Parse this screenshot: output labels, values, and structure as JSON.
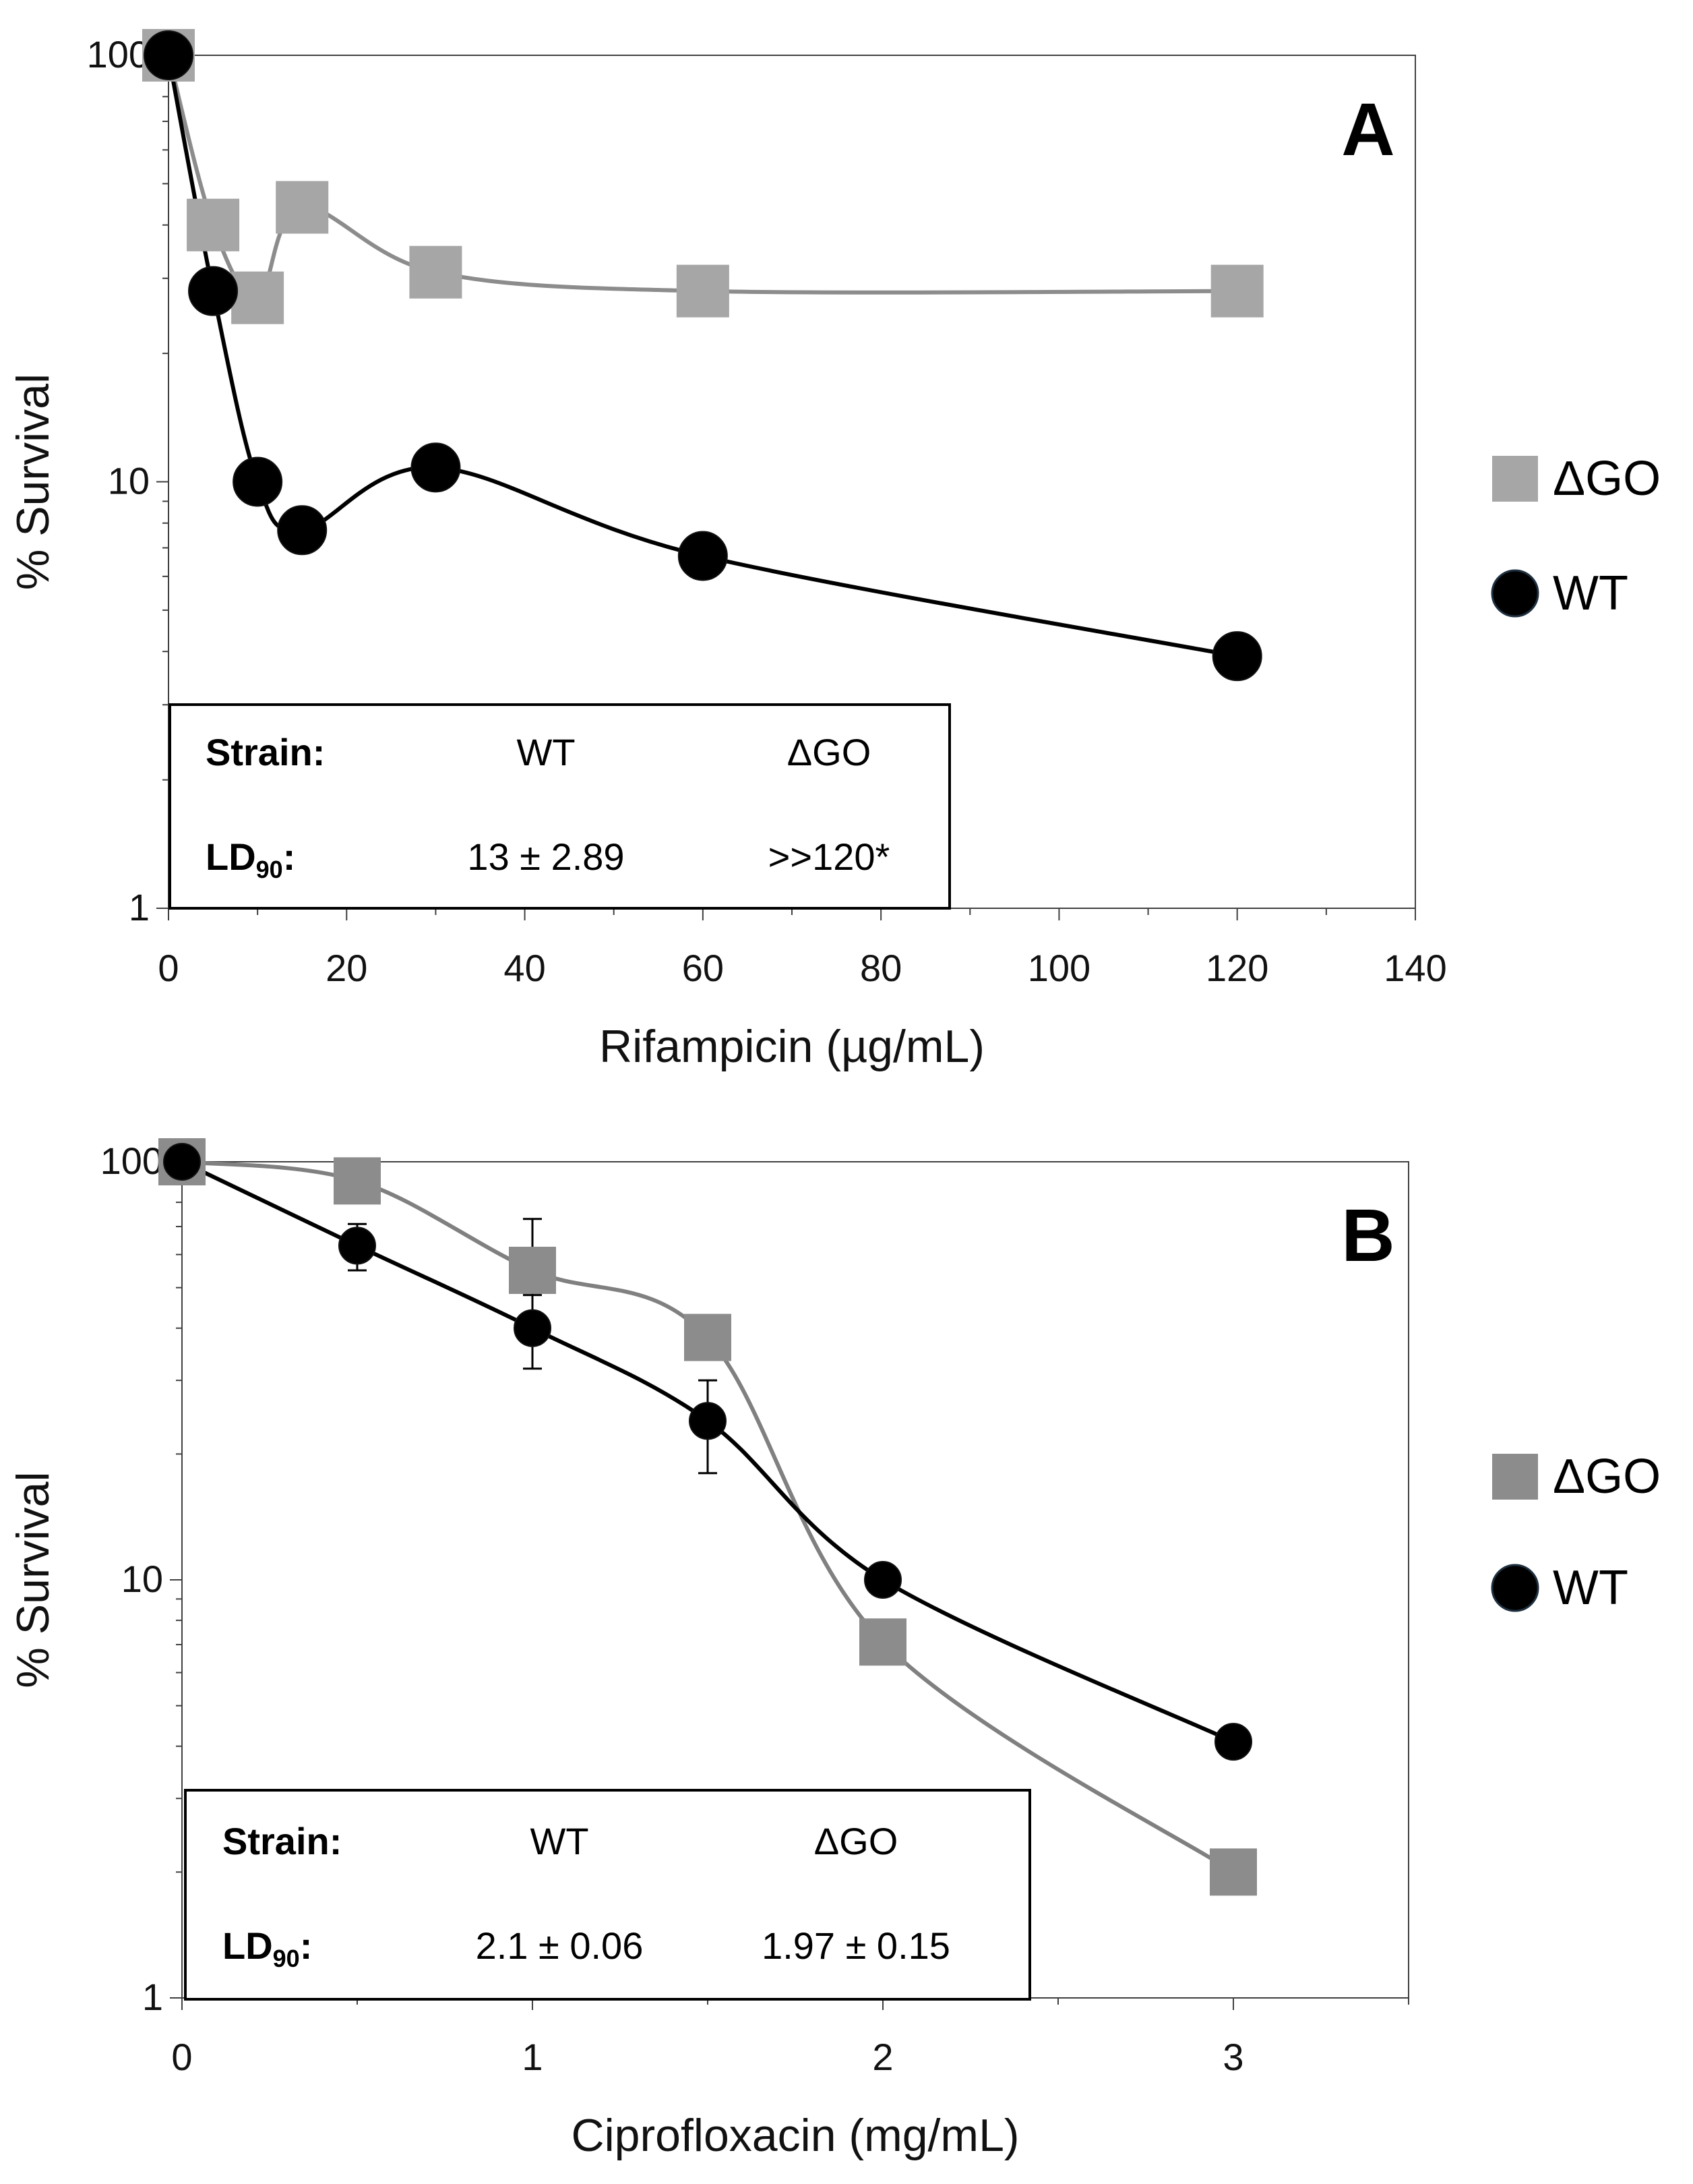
{
  "chart_data": [
    {
      "type": "line",
      "panel_label": "A",
      "xlabel": "Rifampicin (µg/mL)",
      "ylabel": "% Survival",
      "yscale": "log",
      "xlim": [
        0,
        140
      ],
      "ylim": [
        1,
        100
      ],
      "xticks": [
        0,
        20,
        40,
        60,
        80,
        100,
        120,
        140
      ],
      "yticks": [
        1,
        10,
        100
      ],
      "legend_position": "right-outside",
      "series": [
        {
          "name": "ΔGO",
          "color": "#a6a6a6",
          "line_color": "#8c8c8c",
          "marker": "square",
          "x": [
            0,
            5,
            10,
            15,
            30,
            60,
            120
          ],
          "y": [
            100,
            40,
            27,
            44,
            31,
            28,
            28
          ]
        },
        {
          "name": "WT",
          "color": "#000000",
          "line_color": "#000000",
          "marker": "circle",
          "x": [
            0,
            5,
            10,
            15,
            30,
            60,
            120
          ],
          "y": [
            100,
            28,
            10,
            7.7,
            10.8,
            6.7,
            3.9
          ]
        }
      ],
      "table": {
        "header": [
          "Strain:",
          "WT",
          "ΔGO"
        ],
        "row_label_main": "LD",
        "row_label_sub": "90",
        "row_label_suffix": ":",
        "row_values": [
          "13 ± 2.89",
          ">>120*"
        ]
      }
    },
    {
      "type": "line",
      "panel_label": "B",
      "xlabel": "Ciprofloxacin (mg/mL)",
      "ylabel": "% Survival",
      "yscale": "log",
      "xlim": [
        0,
        3.5
      ],
      "ylim": [
        1,
        100
      ],
      "xticks": [
        0,
        1,
        2,
        3
      ],
      "yticks": [
        1,
        10,
        100
      ],
      "legend_position": "right-outside",
      "series": [
        {
          "name": "ΔGO",
          "color": "#8c8c8c",
          "line_color": "#808080",
          "marker": "square",
          "x": [
            0,
            0.5,
            1,
            1.5,
            2,
            3
          ],
          "y": [
            100,
            90,
            55,
            38,
            7.1,
            2.0
          ],
          "err": [
            0,
            0,
            18,
            0,
            0.7,
            0
          ]
        },
        {
          "name": "WT",
          "color": "#000000",
          "line_color": "#000000",
          "marker": "circle",
          "x": [
            0,
            0.5,
            1,
            1.5,
            2,
            3
          ],
          "y": [
            100,
            63,
            40,
            24,
            10,
            4.1
          ],
          "err": [
            0,
            8,
            8,
            6,
            0,
            0
          ]
        }
      ],
      "table": {
        "header": [
          "Strain:",
          "WT",
          "ΔGO"
        ],
        "row_label_main": "LD",
        "row_label_sub": "90",
        "row_label_suffix": ":",
        "row_values": [
          "2.1 ± 0.06",
          "1.97 ± 0.15"
        ]
      }
    }
  ]
}
